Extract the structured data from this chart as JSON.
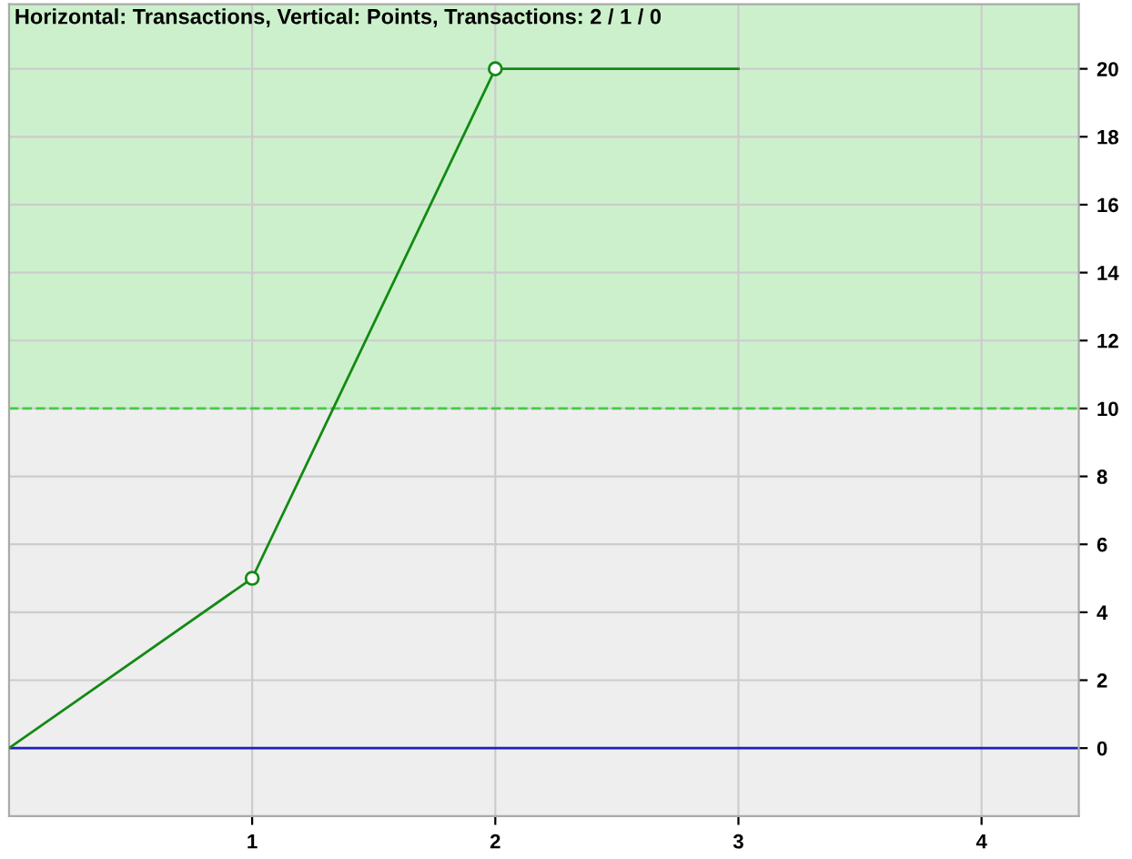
{
  "chart_data": {
    "type": "line",
    "title": "Horizontal: Transactions, Vertical: Points, Transactions: 2 / 1 / 0",
    "series": [
      {
        "color": "#138a13",
        "x": [
          0,
          1,
          2,
          3
        ],
        "values": [
          0,
          5,
          20,
          20
        ],
        "marker": "none"
      },
      {
        "type": "scatter",
        "color": "#138a13",
        "x": [
          1,
          2
        ],
        "values": [
          5,
          20
        ],
        "marker": "circle"
      }
    ],
    "xlim": [
      0,
      4.4
    ],
    "xticks": [
      1,
      2,
      3,
      4
    ],
    "ylim": [
      -2,
      21.9
    ],
    "yticks": [
      0,
      2,
      4,
      6,
      8,
      10,
      12,
      14,
      16,
      18,
      20
    ],
    "ref_lines": [
      {
        "axis": "y",
        "value": 0,
        "color": "#2020c0",
        "line_style": "solid"
      },
      {
        "axis": "y",
        "value": 10,
        "color": "#44cc44",
        "line_style": "dashed"
      }
    ],
    "bands": [
      {
        "axis": "y",
        "from": 10,
        "to": 21.9,
        "color": "#ccf0cc"
      }
    ],
    "grid": true
  }
}
